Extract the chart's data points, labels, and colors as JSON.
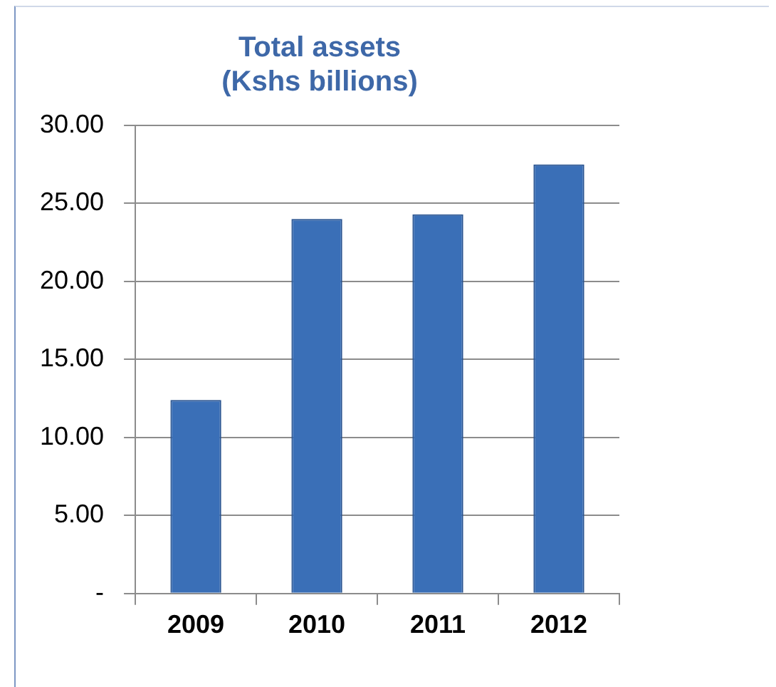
{
  "chart_data": {
    "type": "bar",
    "title": "Total assets\n(Kshs billions)",
    "categories": [
      "2009",
      "2010",
      "2011",
      "2012"
    ],
    "values": [
      12.4,
      24.0,
      24.3,
      27.5
    ],
    "color": "#3a6fb7",
    "ylim": [
      0,
      30
    ],
    "yticks": [
      {
        "value": 0,
        "label": "-"
      },
      {
        "value": 5,
        "label": "5.00"
      },
      {
        "value": 10,
        "label": "10.00"
      },
      {
        "value": 15,
        "label": "15.00"
      },
      {
        "value": 20,
        "label": "20.00"
      },
      {
        "value": 25,
        "label": "25.00"
      },
      {
        "value": 30,
        "label": "30.00"
      }
    ],
    "grid": "y",
    "legend": false
  }
}
